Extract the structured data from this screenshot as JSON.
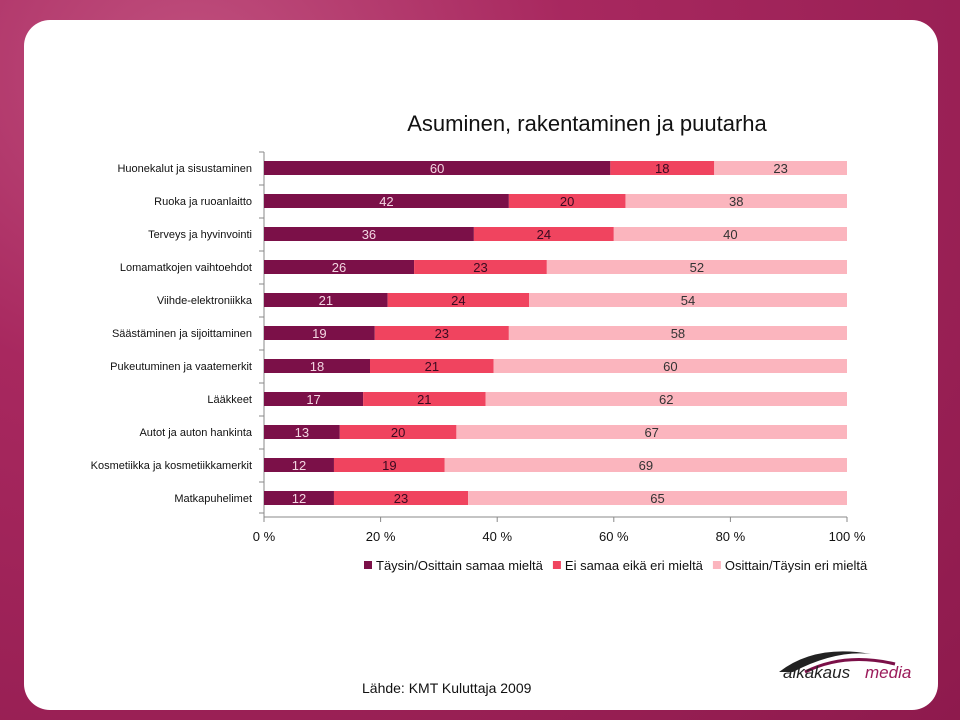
{
  "source_text": "Lähde: KMT Kuluttaja 2009",
  "logo_text": "aikakausmedia",
  "chart_data": {
    "type": "bar",
    "orientation": "horizontal",
    "stacked": true,
    "percent": true,
    "title": "Asuminen, rakentaminen ja puutarha",
    "categories": [
      "Huonekalut ja sisustaminen",
      "Ruoka ja ruoanlaitto",
      "Terveys ja hyvinvointi",
      "Lomamatkojen vaihtoehdot",
      "Viihde-elektroniikka",
      "Säästäminen ja sijoittaminen",
      "Pukeutuminen ja vaatemerkit",
      "Lääkkeet",
      "Autot ja auton hankinta",
      "Kosmetiikka ja kosmetiikkamerkit",
      "Matkapuhelimet"
    ],
    "series": [
      {
        "name": "Täysin/Osittain samaa mieltä",
        "color": "#7b1048",
        "values": [
          60,
          42,
          36,
          26,
          21,
          19,
          18,
          17,
          13,
          12,
          12
        ]
      },
      {
        "name": "Ei samaa eikä eri mieltä",
        "color": "#f0445f",
        "values": [
          18,
          20,
          24,
          23,
          24,
          23,
          21,
          21,
          20,
          19,
          23
        ]
      },
      {
        "name": "Osittain/Täysin eri mieltä",
        "color": "#fbb5be",
        "values": [
          23,
          38,
          40,
          52,
          54,
          58,
          60,
          62,
          67,
          69,
          65
        ]
      }
    ],
    "x_ticks": [
      "0 %",
      "20 %",
      "40 %",
      "60 %",
      "80 %",
      "100 %"
    ],
    "xlim": [
      0,
      100
    ],
    "legend_position": "bottom",
    "grid": false
  }
}
